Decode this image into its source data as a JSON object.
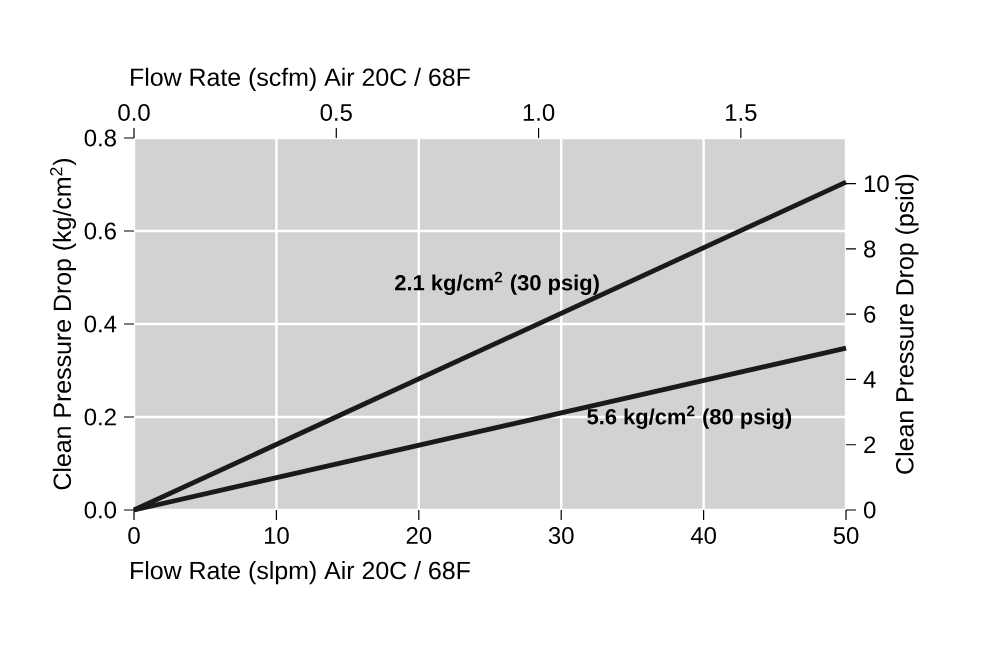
{
  "chart_data": {
    "type": "line",
    "xlabel": "Flow Rate (slpm) Air 20C / 68F",
    "x2label": "Flow Rate (scfm) Air 20C / 68F",
    "ylabel": "Clean Pressure Drop (kg/cm$^{2}$)",
    "y2label": "Clean Pressure Drop (psid)",
    "x": [
      0,
      50
    ],
    "series": [
      {
        "name": "2.1 kg/cm$^{2}$ (30 psig)",
        "color": "#1a1a1a",
        "values": [
          0,
          0.705
        ]
      },
      {
        "name": "5.6 kg/cm$^{2}$ (80 psig)",
        "color": "#1a1a1a",
        "values": [
          0,
          0.348
        ]
      }
    ],
    "xlim": [
      0,
      50
    ],
    "xticks": [
      0,
      10,
      20,
      30,
      40,
      50
    ],
    "x2lim": [
      0,
      1.76
    ],
    "x2ticks": [
      {
        "value": 0,
        "label": "0.0"
      },
      {
        "value": 0.5,
        "label": "0.5"
      },
      {
        "value": 1,
        "label": "1.0"
      },
      {
        "value": 1.5,
        "label": "1.5"
      }
    ],
    "ylim": [
      0,
      0.8
    ],
    "yticks": [
      {
        "value": 0,
        "label": "0.0"
      },
      {
        "value": 0.2,
        "label": "0.2"
      },
      {
        "value": 0.4,
        "label": "0.4"
      },
      {
        "value": 0.6,
        "label": "0.6"
      },
      {
        "value": 0.8,
        "label": "0.8"
      }
    ],
    "y2lim": [
      0,
      11.4
    ],
    "y2ticks": [
      0,
      2,
      4,
      6,
      8,
      10
    ],
    "grid": true,
    "marker": "none",
    "line_style": "solid"
  }
}
